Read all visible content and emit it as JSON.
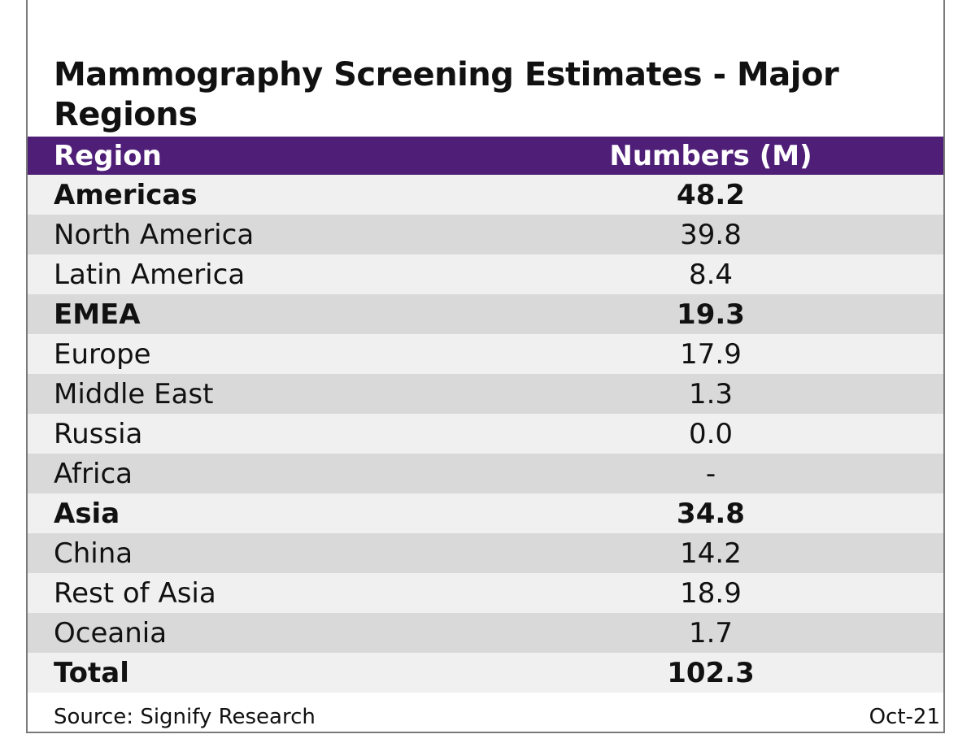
{
  "chart_data": {
    "type": "table",
    "title": "Mammography Screening Estimates - Major Regions",
    "columns": [
      "Region",
      "Numbers (M)"
    ],
    "rows": [
      {
        "region": "Americas",
        "value": "48.2",
        "bold": true
      },
      {
        "region": "North America",
        "value": "39.8",
        "bold": false
      },
      {
        "region": "Latin America",
        "value": "8.4",
        "bold": false
      },
      {
        "region": "EMEA",
        "value": "19.3",
        "bold": true
      },
      {
        "region": "Europe",
        "value": "17.9",
        "bold": false
      },
      {
        "region": "Middle East",
        "value": "1.3",
        "bold": false
      },
      {
        "region": "Russia",
        "value": "0.0",
        "bold": false
      },
      {
        "region": "Africa",
        "value": "-",
        "bold": false
      },
      {
        "region": "Asia",
        "value": "34.8",
        "bold": true
      },
      {
        "region": "China",
        "value": "14.2",
        "bold": false
      },
      {
        "region": "Rest of Asia",
        "value": "18.9",
        "bold": false
      },
      {
        "region": "Oceania",
        "value": "1.7",
        "bold": false
      },
      {
        "region": "Total",
        "value": "102.3",
        "bold": true
      }
    ],
    "source": "Source: Signify  Research",
    "date": "Oct-21",
    "colors": {
      "header_bg": "#4f1f78",
      "header_text": "#ffffff",
      "row_light": "#f0f0f0",
      "row_shade": "#d9d9d9"
    }
  }
}
